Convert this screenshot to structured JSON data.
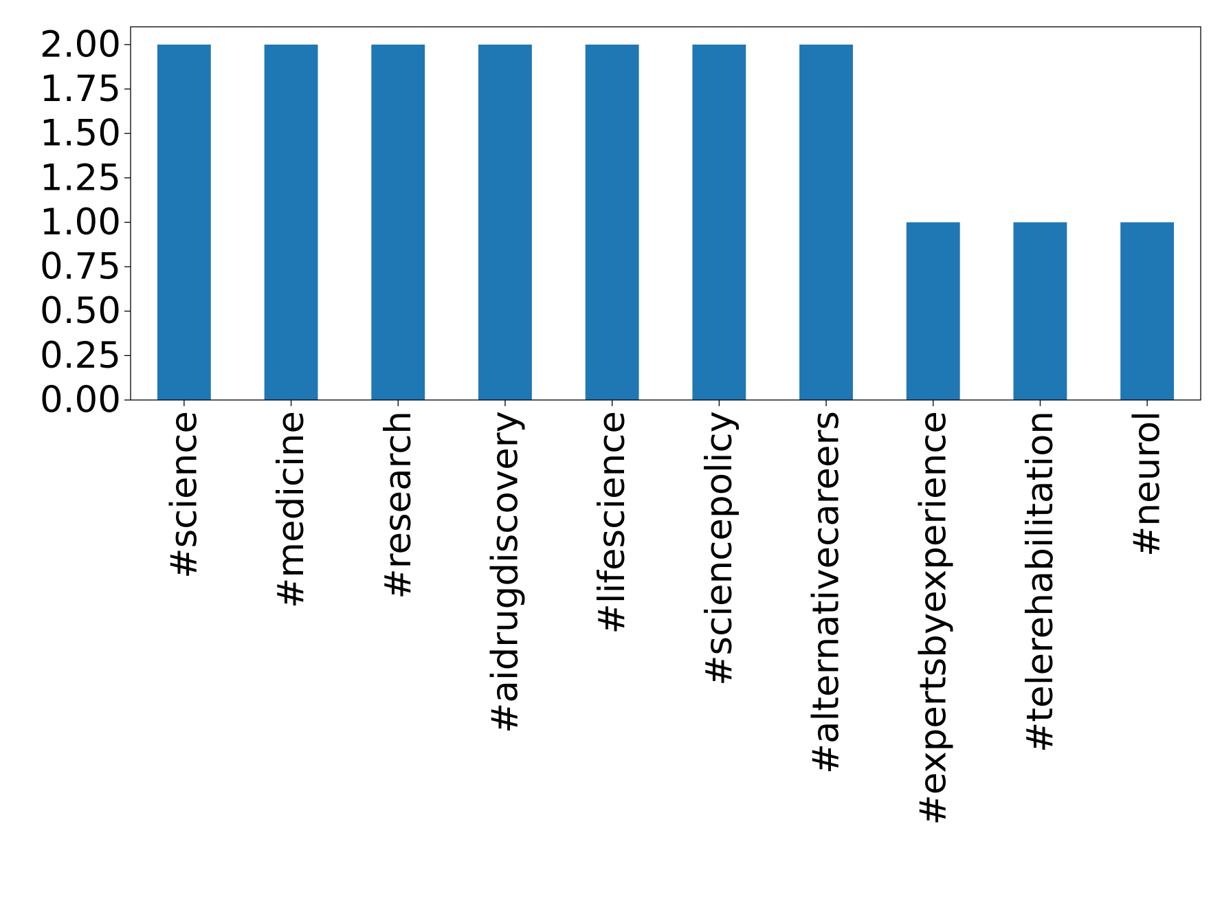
{
  "chart_data": {
    "type": "bar",
    "title": "",
    "xlabel": "",
    "ylabel": "",
    "categories": [
      "#science",
      "#medicine",
      "#research",
      "#aidrugdiscovery",
      "#lifescience",
      "#sciencepolicy",
      "#alternativecareers",
      "#expertsbyexperience",
      "#telerehabilitation",
      "#neurol"
    ],
    "values": [
      2,
      2,
      2,
      2,
      2,
      2,
      2,
      1,
      1,
      1
    ],
    "ylim": [
      0,
      2.1
    ],
    "yticks": [
      "0.00",
      "0.25",
      "0.50",
      "0.75",
      "1.00",
      "1.25",
      "1.50",
      "1.75",
      "2.00"
    ],
    "grid": false,
    "legend": "none",
    "bar_color": "#1f77b4"
  }
}
